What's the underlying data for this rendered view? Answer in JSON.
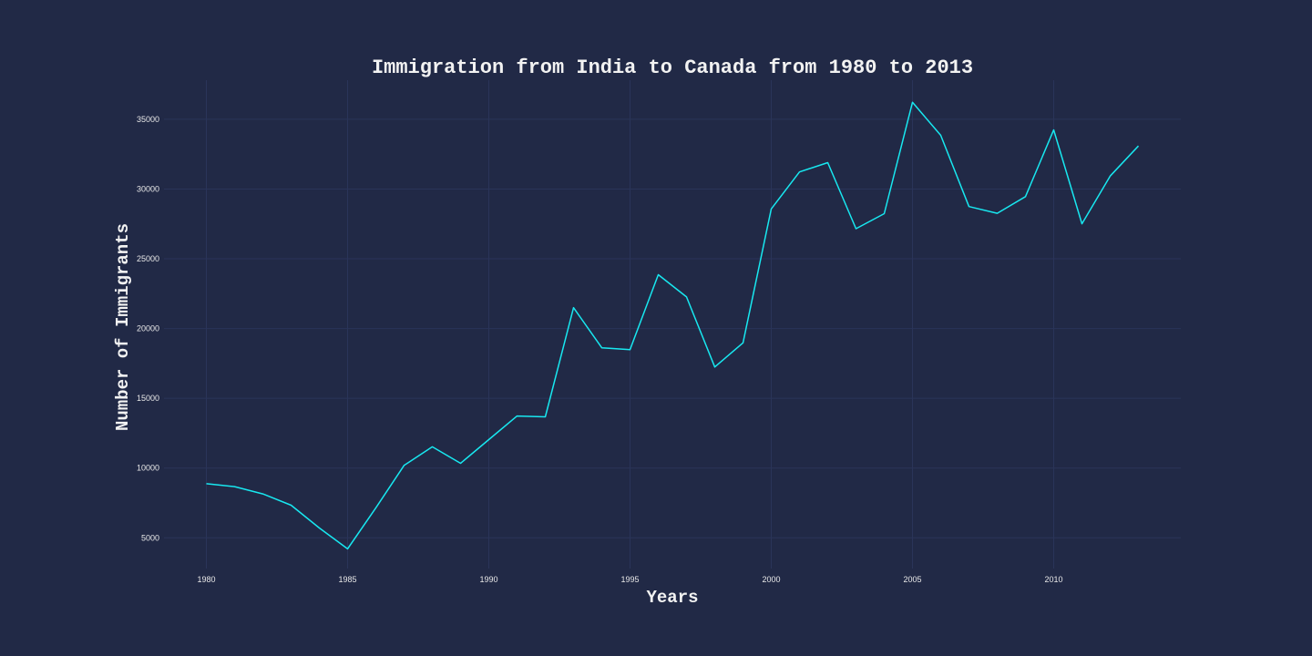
{
  "chart_data": {
    "type": "line",
    "title": "Immigration from India to Canada from 1980 to 2013",
    "xlabel": "Years",
    "ylabel": "Number of Immigrants",
    "xlim": [
      1978.5,
      2014.5
    ],
    "ylim": [
      2800,
      37800
    ],
    "x_ticks": [
      1980,
      1985,
      1990,
      1995,
      2000,
      2005,
      2010
    ],
    "y_ticks": [
      5000,
      10000,
      15000,
      20000,
      25000,
      30000,
      35000
    ],
    "grid": true,
    "legend": "none",
    "colors": {
      "background": "#212946",
      "grid": "#2a3459",
      "line": "#18e8f0",
      "text": "#f2f2f2"
    },
    "series": [
      {
        "x": [
          1980,
          1981,
          1982,
          1983,
          1984,
          1985,
          1986,
          1987,
          1988,
          1989,
          1990,
          1991,
          1992,
          1993,
          1994,
          1995,
          1996,
          1997,
          1998,
          1999,
          2000,
          2001,
          2002,
          2003,
          2004,
          2005,
          2006,
          2007,
          2008,
          2009,
          2010,
          2011,
          2012,
          2013
        ],
        "values": [
          8880,
          8670,
          8147,
          7338,
          5704,
          4211,
          7150,
          10189,
          11522,
          10343,
          12041,
          13734,
          13673,
          21496,
          18620,
          18489,
          23859,
          22268,
          17241,
          18974,
          28572,
          31223,
          31889,
          27155,
          28235,
          36210,
          33848,
          28742,
          28261,
          29456,
          34235,
          27509,
          30933,
          33087
        ]
      }
    ]
  }
}
